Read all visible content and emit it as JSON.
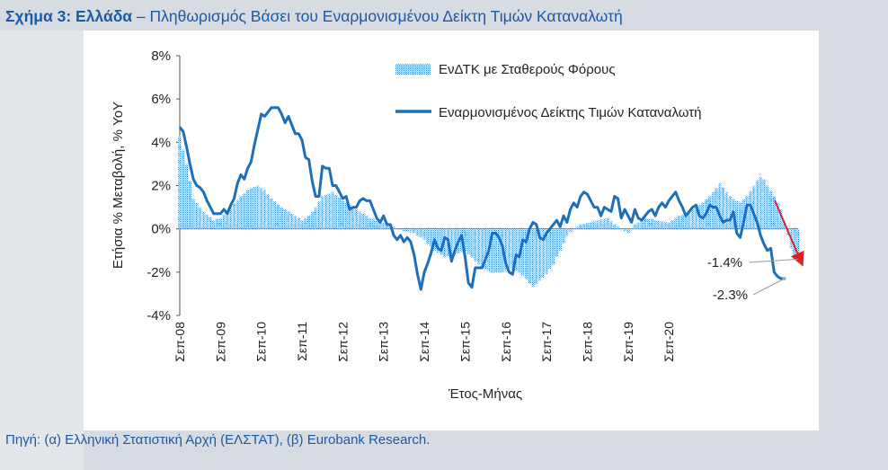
{
  "title": {
    "bold": "Σχήμα 3: Ελλάδα",
    "rest": " – Πληθωρισμός Βάσει του Εναρμονισμένου Δείκτη Τιμών Καταναλωτή"
  },
  "source": "Πηγή: (α) Ελληνική Στατιστική Αρχή (ΕΛΣΤΑΤ), (β) Eurobank Research.",
  "colors": {
    "line": "#1c6fb8",
    "bar": "#3a86c8",
    "arrow": "#e02020",
    "title": "#1b5aa6"
  },
  "chart_data": {
    "type": "bar+line",
    "xlabel": "Έτος-Μήνας",
    "ylabel": "Ετήσια % Μεταβολή, % YoY",
    "ylim": [
      -4,
      8
    ],
    "yticks": [
      "-4%",
      "-2%",
      "0%",
      "2%",
      "4%",
      "6%",
      "8%"
    ],
    "yticks_values": [
      -4,
      -2,
      0,
      2,
      4,
      6,
      8
    ],
    "xticks": [
      "Σεπ-08",
      "Σεπ-09",
      "Σεπ-10",
      "Σεπ-11",
      "Σεπ-12",
      "Σεπ-13",
      "Σεπ-14",
      "Σεπ-15",
      "Σεπ-16",
      "Σεπ-17",
      "Σεπ-18",
      "Σεπ-19",
      "Σεπ-20"
    ],
    "legend_placement": "top-right",
    "series": [
      {
        "name": "ΕνΔΤΚ με Σταθερούς Φόρους",
        "style": "bar",
        "anchors": [
          [
            0,
            4.3
          ],
          [
            2,
            3.0
          ],
          [
            4,
            1.4
          ],
          [
            7,
            0.8
          ],
          [
            10,
            0.4
          ],
          [
            12,
            0.5
          ],
          [
            15,
            1.0
          ],
          [
            18,
            1.5
          ],
          [
            20,
            1.8
          ],
          [
            23,
            2.0
          ],
          [
            25,
            1.8
          ],
          [
            27,
            1.4
          ],
          [
            30,
            1.0
          ],
          [
            33,
            0.7
          ],
          [
            36,
            0.4
          ],
          [
            38,
            0.6
          ],
          [
            40,
            1.0
          ],
          [
            42,
            1.5
          ],
          [
            45,
            1.7
          ],
          [
            48,
            1.3
          ],
          [
            51,
            1.0
          ],
          [
            53,
            0.8
          ],
          [
            56,
            0.5
          ],
          [
            59,
            0.3
          ],
          [
            62,
            0.2
          ],
          [
            64,
            0.0
          ],
          [
            66,
            -0.1
          ],
          [
            69,
            -0.2
          ],
          [
            72,
            -0.5
          ],
          [
            75,
            -1.0
          ],
          [
            78,
            -1.3
          ],
          [
            81,
            -1.2
          ],
          [
            84,
            -1.0
          ],
          [
            87,
            -1.5
          ],
          [
            89,
            -1.8
          ],
          [
            92,
            -2.0
          ],
          [
            95,
            -2.0
          ],
          [
            97,
            -1.8
          ],
          [
            100,
            -2.0
          ],
          [
            102,
            -2.3
          ],
          [
            104,
            -2.7
          ],
          [
            106,
            -2.4
          ],
          [
            108,
            -2.1
          ],
          [
            110,
            -1.6
          ],
          [
            112,
            -1.0
          ],
          [
            114,
            -0.3
          ],
          [
            116,
            0.0
          ],
          [
            118,
            0.2
          ],
          [
            121,
            0.3
          ],
          [
            123,
            0.4
          ],
          [
            126,
            0.5
          ],
          [
            128,
            0.2
          ],
          [
            130,
            0.0
          ],
          [
            132,
            -0.2
          ],
          [
            134,
            0.2
          ],
          [
            137,
            0.5
          ],
          [
            140,
            0.4
          ],
          [
            144,
            0.3
          ],
          [
            147,
            0.6
          ],
          [
            150,
            0.8
          ],
          [
            153,
            1.1
          ],
          [
            156,
            1.5
          ],
          [
            159,
            2.1
          ],
          [
            162,
            1.5
          ],
          [
            165,
            1.2
          ],
          [
            167,
            1.5
          ],
          [
            169,
            2.0
          ],
          [
            171,
            2.4
          ],
          [
            172,
            2.3
          ],
          [
            173,
            2.0
          ],
          [
            175,
            1.5
          ],
          [
            177,
            0.9
          ],
          [
            178,
            0.3
          ],
          [
            179,
            -0.3
          ],
          [
            180,
            -0.9
          ],
          [
            181,
            -1.3
          ],
          [
            182,
            -1.4
          ]
        ]
      },
      {
        "name": "Εναρμονισμένος Δείκτης Τιμών Καταναλωτή",
        "style": "line",
        "anchors": [
          [
            0,
            4.7
          ],
          [
            1,
            4.5
          ],
          [
            2,
            3.8
          ],
          [
            3,
            3.0
          ],
          [
            4,
            2.3
          ],
          [
            5,
            2.0
          ],
          [
            6,
            1.9
          ],
          [
            7,
            1.7
          ],
          [
            8,
            1.3
          ],
          [
            9,
            1.0
          ],
          [
            10,
            0.7
          ],
          [
            11,
            0.7
          ],
          [
            12,
            0.7
          ],
          [
            13,
            0.9
          ],
          [
            14,
            0.7
          ],
          [
            15,
            1.1
          ],
          [
            16,
            1.4
          ],
          [
            17,
            2.1
          ],
          [
            18,
            2.5
          ],
          [
            19,
            2.3
          ],
          [
            20,
            2.8
          ],
          [
            21,
            3.1
          ],
          [
            22,
            3.9
          ],
          [
            23,
            4.6
          ],
          [
            24,
            5.3
          ],
          [
            25,
            5.2
          ],
          [
            26,
            5.4
          ],
          [
            27,
            5.6
          ],
          [
            28,
            5.6
          ],
          [
            29,
            5.6
          ],
          [
            30,
            5.3
          ],
          [
            31,
            4.9
          ],
          [
            32,
            5.2
          ],
          [
            33,
            4.8
          ],
          [
            34,
            4.4
          ],
          [
            35,
            4.4
          ],
          [
            36,
            4.1
          ],
          [
            37,
            3.3
          ],
          [
            38,
            3.2
          ],
          [
            39,
            2.2
          ],
          [
            40,
            1.5
          ],
          [
            41,
            1.5
          ],
          [
            42,
            2.9
          ],
          [
            43,
            2.8
          ],
          [
            44,
            2.8
          ],
          [
            45,
            2.0
          ],
          [
            46,
            2.0
          ],
          [
            47,
            1.7
          ],
          [
            48,
            1.4
          ],
          [
            49,
            1.5
          ],
          [
            50,
            0.9
          ],
          [
            51,
            1.0
          ],
          [
            52,
            1.0
          ],
          [
            53,
            1.3
          ],
          [
            54,
            1.4
          ],
          [
            55,
            1.3
          ],
          [
            56,
            1.3
          ],
          [
            57,
            0.9
          ],
          [
            58,
            0.5
          ],
          [
            59,
            0.3
          ],
          [
            60,
            0.6
          ],
          [
            61,
            0.2
          ],
          [
            62,
            0.2
          ],
          [
            63,
            -0.3
          ],
          [
            64,
            -0.5
          ],
          [
            65,
            -0.3
          ],
          [
            66,
            -0.6
          ],
          [
            67,
            -0.4
          ],
          [
            68,
            -0.6
          ],
          [
            69,
            -1.2
          ],
          [
            70,
            -2.1
          ],
          [
            71,
            -2.8
          ],
          [
            72,
            -2.0
          ],
          [
            73,
            -1.6
          ],
          [
            74,
            -1.1
          ],
          [
            75,
            -0.5
          ],
          [
            76,
            -0.9
          ],
          [
            77,
            -1.0
          ],
          [
            78,
            -0.4
          ],
          [
            79,
            -0.5
          ],
          [
            80,
            -1.5
          ],
          [
            81,
            -1.0
          ],
          [
            82,
            -0.6
          ],
          [
            83,
            -0.3
          ],
          [
            84,
            -1.3
          ],
          [
            85,
            -2.5
          ],
          [
            86,
            -2.7
          ],
          [
            87,
            -1.8
          ],
          [
            88,
            -1.8
          ],
          [
            89,
            -1.8
          ],
          [
            90,
            -1.4
          ],
          [
            91,
            -1.0
          ],
          [
            92,
            -0.2
          ],
          [
            93,
            -0.2
          ],
          [
            94,
            -0.4
          ],
          [
            95,
            -0.8
          ],
          [
            96,
            -1.6
          ],
          [
            97,
            -2.0
          ],
          [
            98,
            -2.1
          ],
          [
            99,
            -1.2
          ],
          [
            100,
            -1.3
          ],
          [
            101,
            -0.5
          ],
          [
            102,
            -0.6
          ],
          [
            103,
            0.0
          ],
          [
            104,
            0.3
          ],
          [
            105,
            0.2
          ],
          [
            106,
            -0.4
          ],
          [
            107,
            -0.5
          ],
          [
            108,
            -0.2
          ],
          [
            109,
            0.0
          ],
          [
            110,
            0.2
          ],
          [
            111,
            0.4
          ],
          [
            112,
            0.1
          ],
          [
            113,
            0.6
          ],
          [
            114,
            0.3
          ],
          [
            115,
            0.9
          ],
          [
            116,
            1.2
          ],
          [
            117,
            1.0
          ],
          [
            118,
            1.5
          ],
          [
            119,
            1.7
          ],
          [
            120,
            1.6
          ],
          [
            121,
            1.3
          ],
          [
            122,
            1.0
          ],
          [
            123,
            1.0
          ],
          [
            124,
            0.6
          ],
          [
            125,
            1.0
          ],
          [
            126,
            0.9
          ],
          [
            127,
            0.8
          ],
          [
            128,
            1.5
          ],
          [
            129,
            1.4
          ],
          [
            130,
            0.5
          ],
          [
            131,
            0.9
          ],
          [
            132,
            0.6
          ],
          [
            133,
            0.3
          ],
          [
            134,
            0.9
          ],
          [
            135,
            0.5
          ],
          [
            136,
            0.4
          ],
          [
            137,
            0.6
          ],
          [
            138,
            0.8
          ],
          [
            139,
            0.9
          ],
          [
            140,
            0.6
          ],
          [
            141,
            1.0
          ],
          [
            142,
            1.2
          ],
          [
            143,
            1.0
          ],
          [
            144,
            1.3
          ],
          [
            145,
            1.5
          ],
          [
            146,
            1.7
          ],
          [
            147,
            1.3
          ],
          [
            148,
            1.0
          ],
          [
            149,
            0.6
          ],
          [
            150,
            0.8
          ],
          [
            151,
            1.0
          ],
          [
            152,
            1.1
          ],
          [
            153,
            0.6
          ],
          [
            154,
            0.5
          ],
          [
            155,
            0.7
          ],
          [
            156,
            1.1
          ],
          [
            157,
            1.0
          ],
          [
            158,
            1.0
          ],
          [
            159,
            0.6
          ],
          [
            160,
            0.3
          ],
          [
            161,
            0.4
          ],
          [
            162,
            0.4
          ],
          [
            163,
            0.8
          ],
          [
            164,
            -0.2
          ],
          [
            165,
            -0.4
          ],
          [
            166,
            0.3
          ],
          [
            167,
            1.1
          ],
          [
            168,
            1.1
          ],
          [
            169,
            0.7
          ],
          [
            170,
            0.3
          ],
          [
            171,
            -0.3
          ],
          [
            172,
            -0.7
          ],
          [
            173,
            -1.0
          ],
          [
            174,
            -0.9
          ],
          [
            175,
            -2.0
          ],
          [
            176,
            -2.2
          ],
          [
            177,
            -2.3
          ],
          [
            178,
            -2.3
          ]
        ]
      }
    ],
    "annotations": [
      {
        "text": "-1.4%",
        "value": -1.4
      },
      {
        "text": "-2.3%",
        "value": -2.3
      }
    ]
  }
}
